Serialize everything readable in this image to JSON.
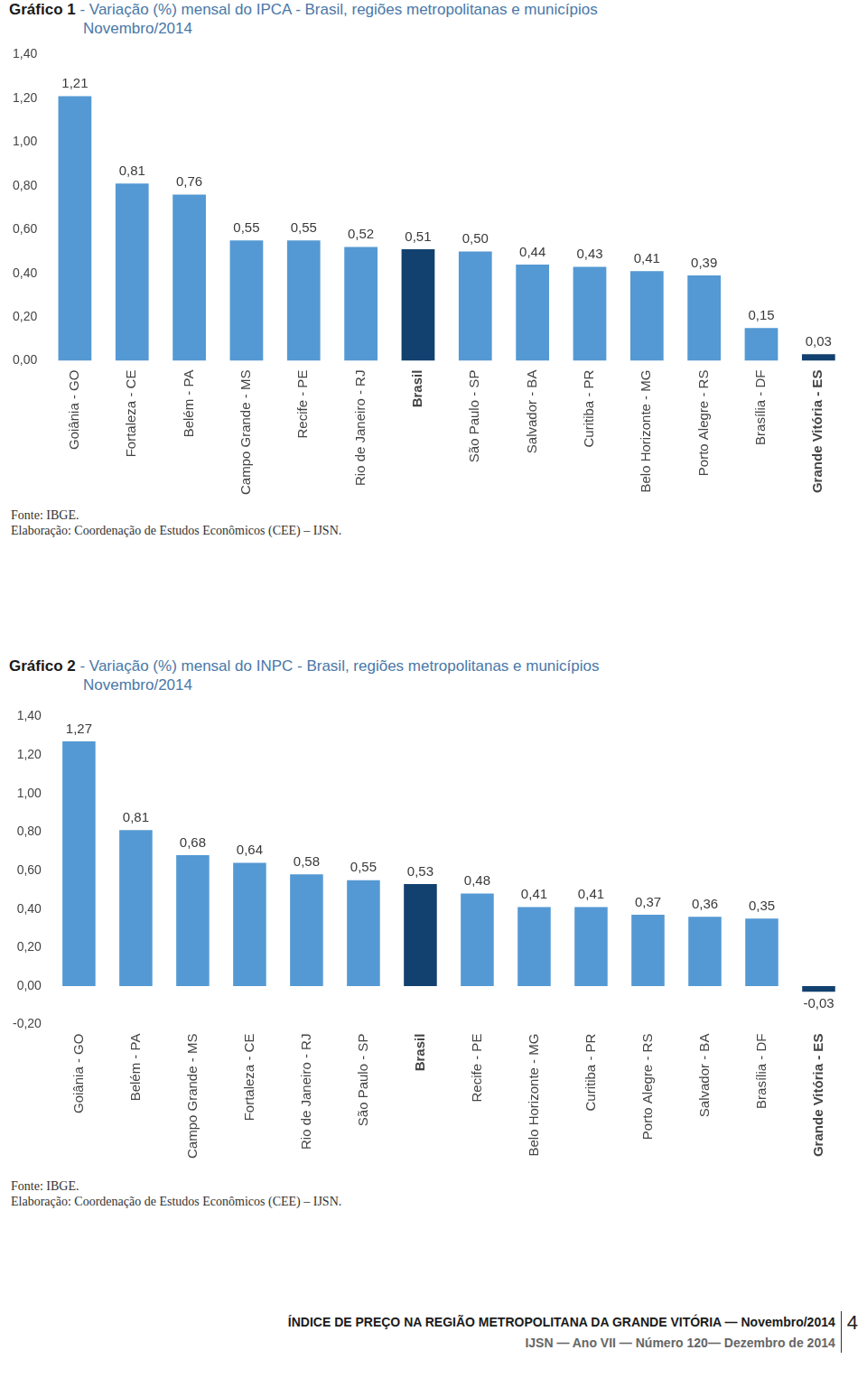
{
  "chart_data": [
    {
      "type": "bar",
      "title": "Gráfico 1 - Variação (%) mensal do IPCA - Brasil, regiões metropolitanas e municípios",
      "subtitle": "Novembro/2014",
      "categories": [
        "Goiânia - GO",
        "Fortaleza - CE",
        "Belém - PA",
        "Campo Grande - MS",
        "Recife - PE",
        "Rio de Janeiro - RJ",
        "Brasil",
        "São Paulo - SP",
        "Salvador - BA",
        "Curitiba - PR",
        "Belo Horizonte - MG",
        "Porto Alegre - RS",
        "Brasília - DF",
        "Grande Vitória - ES"
      ],
      "values": [
        1.21,
        0.81,
        0.76,
        0.55,
        0.55,
        0.52,
        0.51,
        0.5,
        0.44,
        0.43,
        0.41,
        0.39,
        0.15,
        0.03
      ],
      "value_labels": [
        "1,21",
        "0,81",
        "0,76",
        "0,55",
        "0,55",
        "0,52",
        "0,51",
        "0,50",
        "0,44",
        "0,43",
        "0,41",
        "0,39",
        "0,15",
        "0,03"
      ],
      "colors": [
        "#5499d3",
        "#5499d3",
        "#5499d3",
        "#5499d3",
        "#5499d3",
        "#5499d3",
        "#12416f",
        "#5499d3",
        "#5499d3",
        "#5499d3",
        "#5499d3",
        "#5499d3",
        "#5499d3",
        "#12416f"
      ],
      "ylim": [
        0,
        1.4
      ],
      "yticks": [
        {
          "value": 0,
          "label": "0,00"
        },
        {
          "value": 0.2,
          "label": "0,20"
        },
        {
          "value": 0.4,
          "label": "0,40"
        },
        {
          "value": 0.6,
          "label": "0,60"
        },
        {
          "value": 0.8,
          "label": "0,80"
        },
        {
          "value": 1.0,
          "label": "1,00"
        },
        {
          "value": 1.2,
          "label": "1,20"
        },
        {
          "value": 1.4,
          "label": "1,40"
        }
      ],
      "grid": false,
      "data_labels": true,
      "annotations": [
        "Fonte: IBGE.",
        "Elaboração: Coordenação de Estudos Econômicos (CEE) – IJSN."
      ]
    },
    {
      "type": "bar",
      "title": "Gráfico 2 - Variação (%) mensal do INPC - Brasil, regiões metropolitanas e municípios",
      "subtitle": "Novembro/2014",
      "categories": [
        "Goiânia - GO",
        "Belém - PA",
        "Campo Grande - MS",
        "Fortaleza - CE",
        "Rio de Janeiro - RJ",
        "São Paulo - SP",
        "Brasil",
        "Recife - PE",
        "Belo Horizonte - MG",
        "Curitiba - PR",
        "Porto Alegre - RS",
        "Salvador - BA",
        "Brasília - DF",
        "Grande Vitória - ES"
      ],
      "values": [
        1.27,
        0.81,
        0.68,
        0.64,
        0.58,
        0.55,
        0.53,
        0.48,
        0.41,
        0.41,
        0.37,
        0.36,
        0.35,
        -0.03
      ],
      "value_labels": [
        "1,27",
        "0,81",
        "0,68",
        "0,64",
        "0,58",
        "0,55",
        "0,53",
        "0,48",
        "0,41",
        "0,41",
        "0,37",
        "0,36",
        "0,35",
        "-0,03"
      ],
      "colors": [
        "#5499d3",
        "#5499d3",
        "#5499d3",
        "#5499d3",
        "#5499d3",
        "#5499d3",
        "#12416f",
        "#5499d3",
        "#5499d3",
        "#5499d3",
        "#5499d3",
        "#5499d3",
        "#5499d3",
        "#12416f"
      ],
      "ylim": [
        -0.2,
        1.4
      ],
      "yticks": [
        {
          "value": -0.2,
          "label": "-0,20"
        },
        {
          "value": 0,
          "label": "0,00"
        },
        {
          "value": 0.2,
          "label": "0,20"
        },
        {
          "value": 0.4,
          "label": "0,40"
        },
        {
          "value": 0.6,
          "label": "0,60"
        },
        {
          "value": 0.8,
          "label": "0,80"
        },
        {
          "value": 1.0,
          "label": "1,00"
        },
        {
          "value": 1.2,
          "label": "1,20"
        },
        {
          "value": 1.4,
          "label": "1,40"
        }
      ],
      "grid": false,
      "data_labels": true,
      "annotations": [
        "Fonte: IBGE.",
        "Elaboração: Coordenação de Estudos Econômicos (CEE) – IJSN."
      ]
    }
  ],
  "footer": {
    "title": "ÍNDICE DE PREÇO NA REGIÃO METROPOLITANA DA GRANDE VITÓRIA — Novembro/2014",
    "subtitle": "IJSN — Ano VII — Número 120— Dezembro de 2014",
    "page": "4"
  }
}
